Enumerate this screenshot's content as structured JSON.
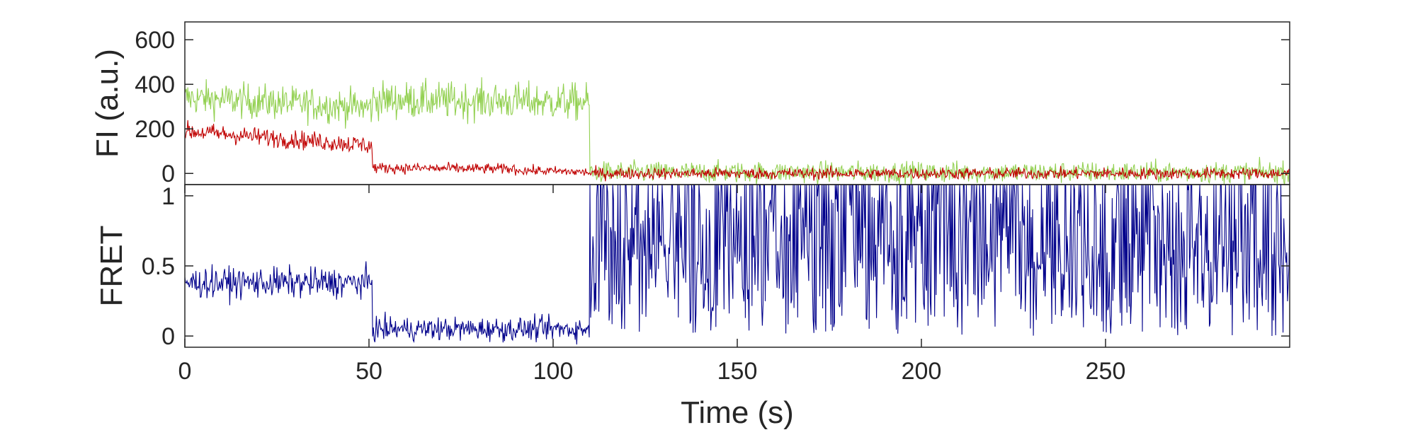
{
  "chart_data": [
    {
      "type": "line",
      "panel": "top",
      "ylabel": "FI (a.u.)",
      "xlabel": "",
      "xlim": [
        0,
        300
      ],
      "ylim": [
        -50,
        680
      ],
      "yticks": [
        "0",
        "200",
        "400",
        "600"
      ],
      "ytick_values": [
        0,
        200,
        400,
        600
      ],
      "grid": false,
      "legend": "none",
      "series": [
        {
          "color": "#92d050",
          "segments": [
            {
              "x0": 0,
              "x1": 51,
              "start": 340,
              "end": 295,
              "noise": 65
            },
            {
              "x0": 51,
              "x1": 110,
              "start": 330,
              "end": 320,
              "noise": 70
            },
            {
              "x0": 110,
              "x1": 300,
              "start": 5,
              "end": 5,
              "noise": 40
            }
          ]
        },
        {
          "color": "#c00000",
          "segments": [
            {
              "x0": 0,
              "x1": 51,
              "start": 190,
              "end": 125,
              "noise": 35
            },
            {
              "x0": 51,
              "x1": 90,
              "start": 25,
              "end": 20,
              "noise": 20
            },
            {
              "x0": 90,
              "x1": 110,
              "start": 15,
              "end": 5,
              "noise": 18
            },
            {
              "x0": 110,
              "x1": 300,
              "start": 0,
              "end": 0,
              "noise": 22
            }
          ]
        }
      ]
    },
    {
      "type": "line",
      "panel": "bottom",
      "ylabel": "FRET",
      "xlabel": "Time (s)",
      "xlim": [
        0,
        300
      ],
      "ylim": [
        -0.08,
        1.08
      ],
      "yticks": [
        "0",
        "0.5",
        "1"
      ],
      "ytick_values": [
        0,
        0.5,
        1
      ],
      "xticks": [
        "0",
        "50",
        "100",
        "150",
        "200",
        "250"
      ],
      "xtick_values": [
        0,
        50,
        100,
        150,
        200,
        250
      ],
      "grid": false,
      "legend": "none",
      "series": [
        {
          "color": "#00008b",
          "segments": [
            {
              "x0": 0,
              "x1": 51,
              "start": 0.38,
              "end": 0.38,
              "noise": 0.09
            },
            {
              "x0": 51,
              "x1": 110,
              "start": 0.05,
              "end": 0.05,
              "noise": 0.07
            },
            {
              "x0": 110,
              "x1": 300,
              "start": 0.5,
              "end": 0.5,
              "noise": 0.55,
              "clip": true
            }
          ]
        }
      ]
    }
  ]
}
